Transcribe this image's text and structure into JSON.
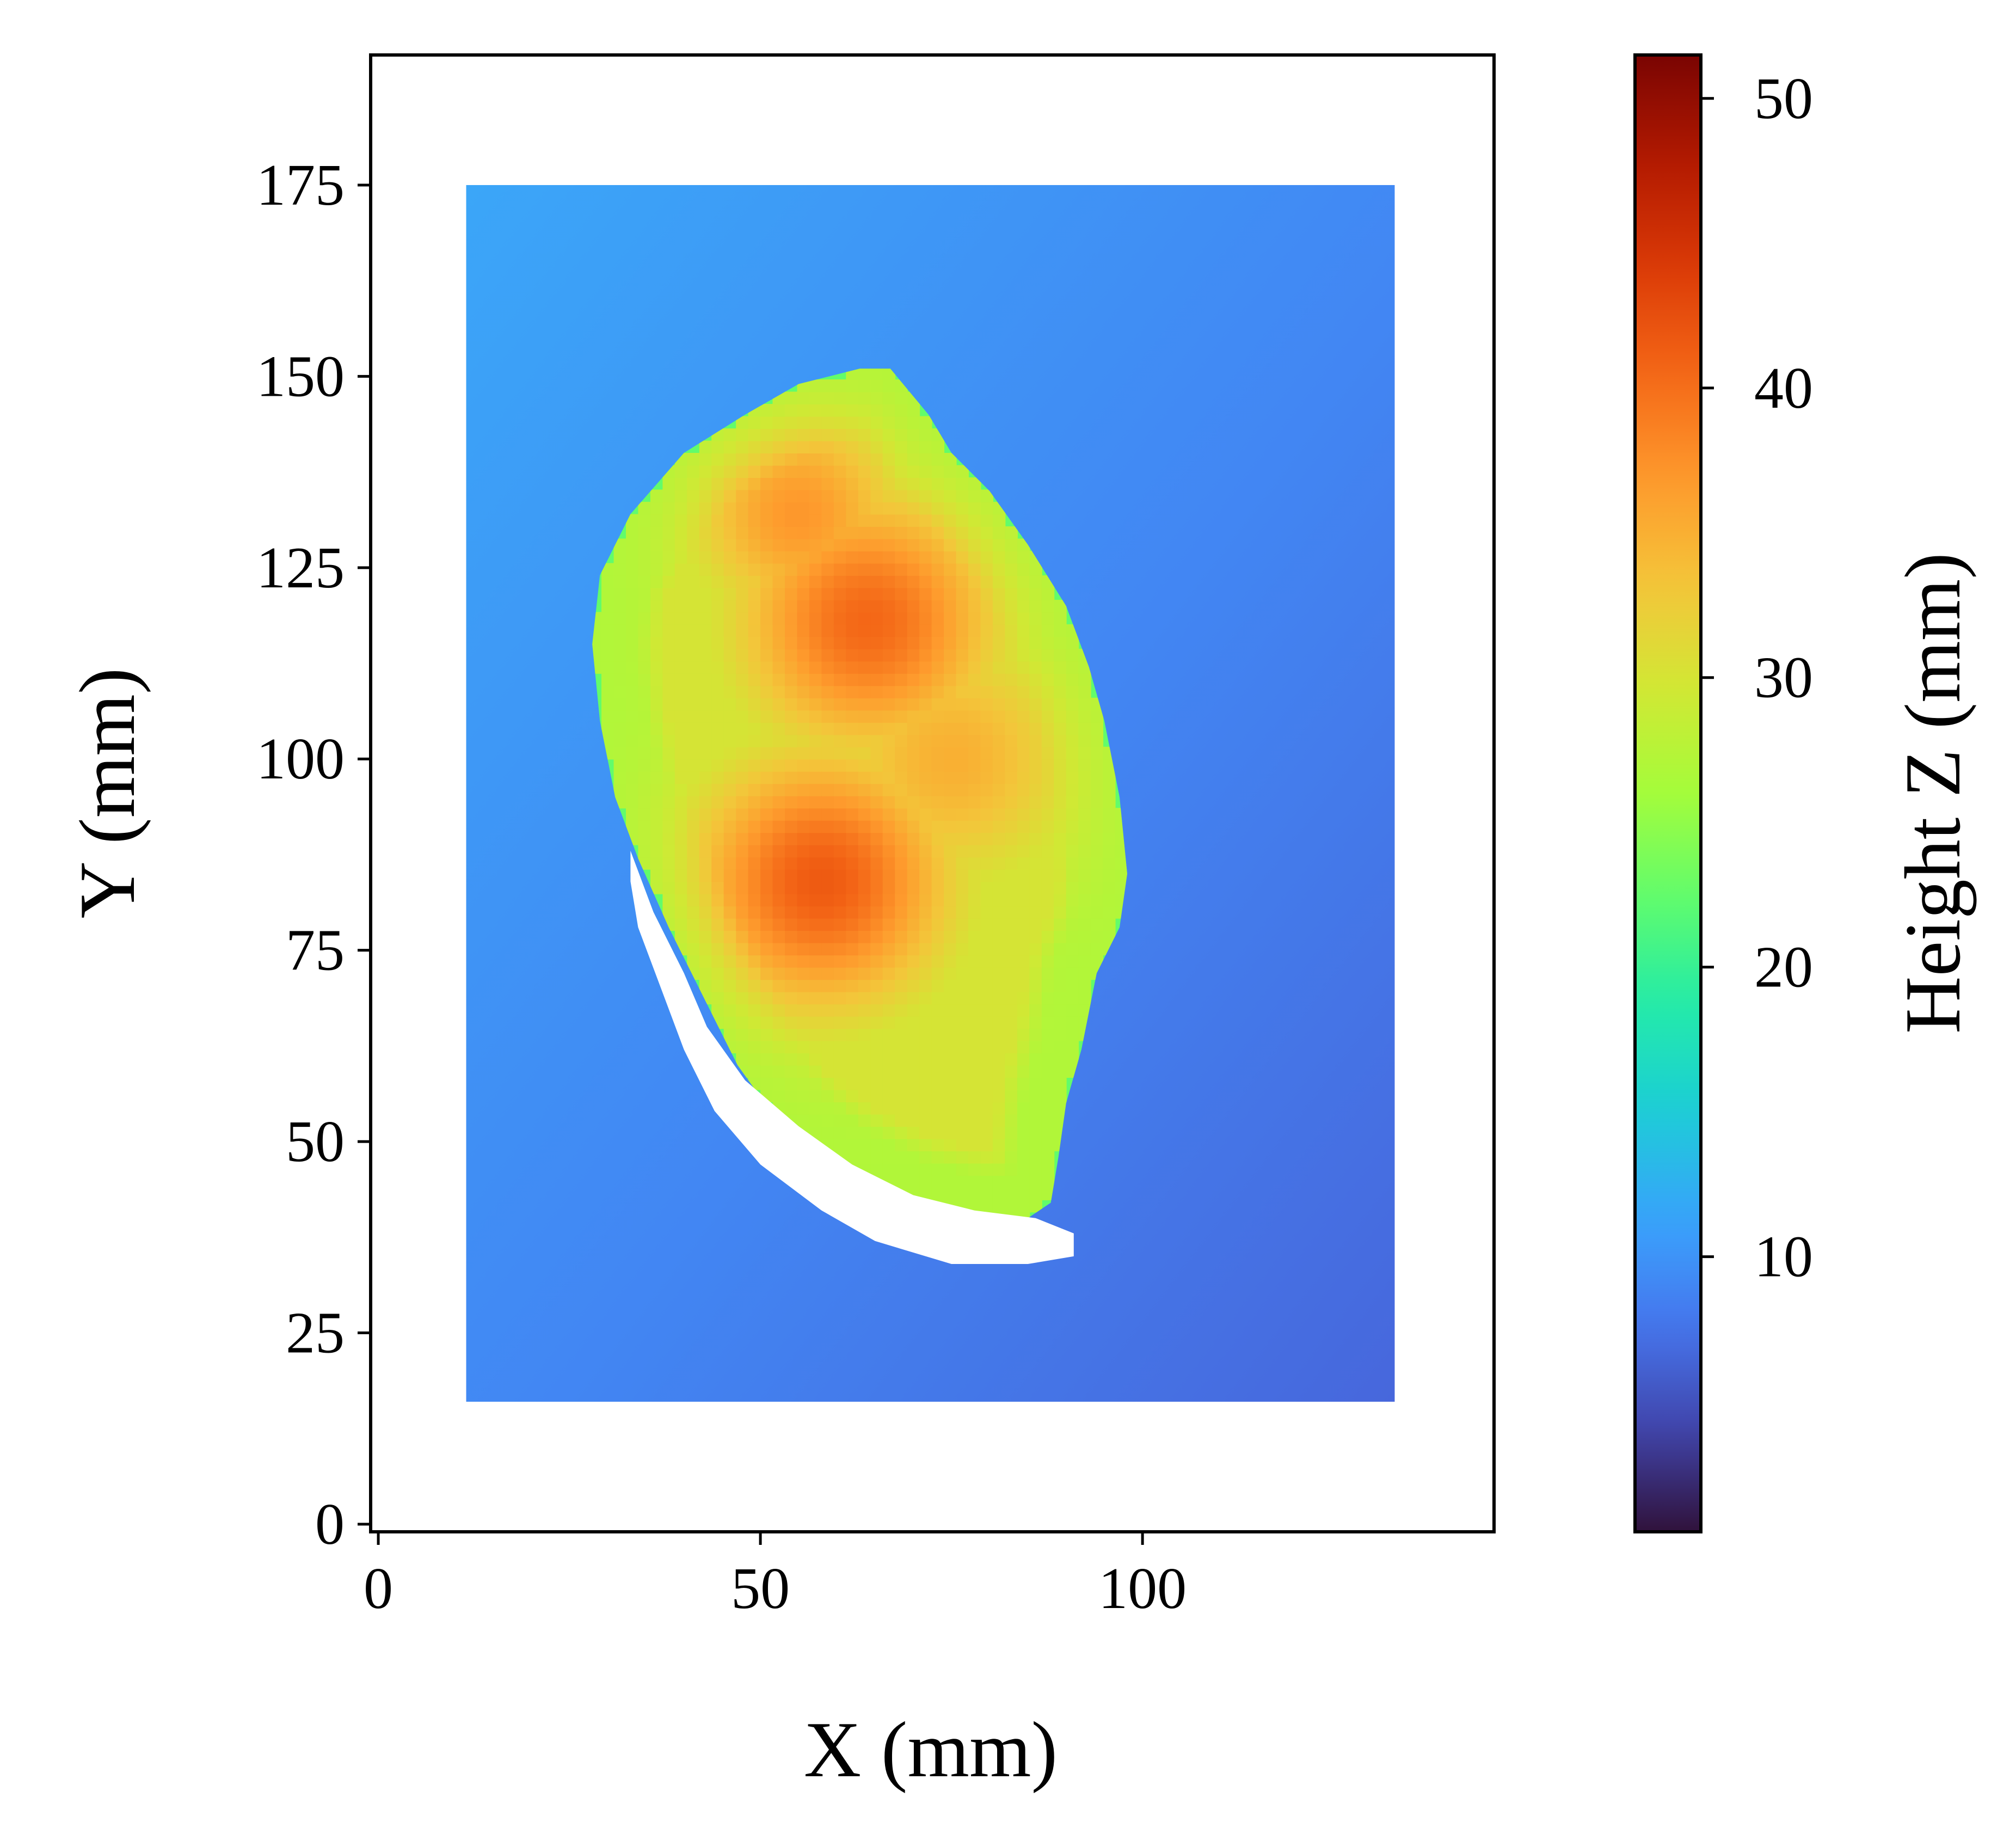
{
  "chart_data": {
    "type": "heatmap",
    "title": "",
    "xlabel": "X (mm)",
    "ylabel": "Y (mm)",
    "xlim": [
      -1,
      146
    ],
    "ylim": [
      -1,
      192
    ],
    "xticks": [
      0,
      50,
      100
    ],
    "yticks": [
      0,
      25,
      50,
      75,
      100,
      125,
      150,
      175
    ],
    "grid": false,
    "colormap": "turbo",
    "colorbar": {
      "label": "Height Z (mm)",
      "range": [
        0.5,
        51.5
      ],
      "ticks": [
        10,
        20,
        30,
        40,
        50
      ],
      "position": "right"
    },
    "scan_region": {
      "x_range": [
        11.5,
        133
      ],
      "y_range": [
        16,
        175
      ]
    },
    "background_surface": {
      "description_values": "height Z in mm",
      "z_at_corners": {
        "x11_y175": 11.5,
        "x133_y175": 6.5,
        "x11_y16": 12.0,
        "x133_y16": 7.5
      }
    },
    "object": {
      "outline_xy": [
        [
          63,
          151
        ],
        [
          67,
          151
        ],
        [
          72,
          145
        ],
        [
          75,
          140
        ],
        [
          80,
          135
        ],
        [
          85,
          128
        ],
        [
          90,
          120
        ],
        [
          93,
          112
        ],
        [
          95,
          105
        ],
        [
          97,
          95
        ],
        [
          98,
          85
        ],
        [
          97,
          78
        ],
        [
          94,
          72
        ],
        [
          92,
          62
        ],
        [
          90,
          55
        ],
        [
          89,
          48
        ],
        [
          88,
          42
        ],
        [
          85,
          40
        ],
        [
          78,
          40
        ],
        [
          70,
          42
        ],
        [
          60,
          47
        ],
        [
          52,
          53
        ],
        [
          47,
          60
        ],
        [
          43,
          68
        ],
        [
          38,
          78
        ],
        [
          34,
          87
        ],
        [
          31,
          95
        ],
        [
          29,
          105
        ],
        [
          28,
          115
        ],
        [
          29,
          124
        ],
        [
          33,
          132
        ],
        [
          40,
          140
        ],
        [
          48,
          145
        ],
        [
          55,
          149
        ]
      ],
      "shadow_outline_xy": [
        [
          33,
          88
        ],
        [
          36,
          80
        ],
        [
          40,
          72
        ],
        [
          43,
          65
        ],
        [
          48,
          58
        ],
        [
          55,
          52
        ],
        [
          62,
          47
        ],
        [
          70,
          43
        ],
        [
          78,
          41
        ],
        [
          86,
          40
        ],
        [
          91,
          38
        ],
        [
          91,
          35
        ],
        [
          85,
          34
        ],
        [
          75,
          34
        ],
        [
          65,
          37
        ],
        [
          58,
          41
        ],
        [
          50,
          47
        ],
        [
          44,
          54
        ],
        [
          40,
          62
        ],
        [
          37,
          70
        ],
        [
          34,
          78
        ],
        [
          33,
          84
        ]
      ],
      "peaks": [
        {
          "x": 58,
          "y": 84,
          "z": 41.5,
          "spread": 12
        },
        {
          "x": 64,
          "y": 118,
          "z": 40.5,
          "spread": 12
        },
        {
          "x": 55,
          "y": 132,
          "z": 37.0,
          "spread": 10
        },
        {
          "x": 75,
          "y": 100,
          "z": 35.0,
          "spread": 12
        }
      ],
      "base_height_z": 27.0,
      "edge_height_z": 22.5
    }
  }
}
